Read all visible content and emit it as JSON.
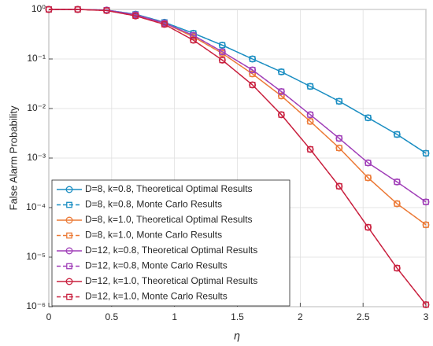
{
  "chart_data": {
    "type": "line",
    "x_label": "η",
    "y_label": "False Alarm Probability",
    "x": [
      0,
      0.23,
      0.46,
      0.69,
      0.92,
      1.15,
      1.38,
      1.62,
      1.85,
      2.08,
      2.31,
      2.54,
      2.77,
      3
    ],
    "series": [
      {
        "name": "D=8, k=0.8, Theoretical Optimal Results",
        "color": "#1b8ec2",
        "marker": "circle",
        "linestyle": "solid",
        "values": [
          1,
          1,
          0.97,
          0.8,
          0.55,
          0.33,
          0.19,
          0.1,
          0.055,
          0.028,
          0.014,
          0.0065,
          0.003,
          0.00125
        ]
      },
      {
        "name": "D=8, k=0.8, Monte Carlo Results",
        "color": "#1b8ec2",
        "marker": "square",
        "linestyle": "dashed",
        "values": [
          1,
          1,
          0.97,
          0.8,
          0.55,
          0.33,
          0.19,
          0.1,
          0.055,
          0.028,
          0.014,
          0.0065,
          0.003,
          0.00125
        ]
      },
      {
        "name": "D=8, k=1.0, Theoretical Optimal Results",
        "color": "#ec7a37",
        "marker": "circle",
        "linestyle": "solid",
        "values": [
          1,
          1,
          0.96,
          0.78,
          0.53,
          0.28,
          0.13,
          0.05,
          0.018,
          0.0055,
          0.0016,
          0.0004,
          0.00012,
          4.5e-05
        ]
      },
      {
        "name": "D=8, k=1.0, Monte Carlo Results",
        "color": "#ec7a37",
        "marker": "square",
        "linestyle": "dashed",
        "values": [
          1,
          1,
          0.96,
          0.78,
          0.53,
          0.28,
          0.13,
          0.05,
          0.018,
          0.0055,
          0.0016,
          0.0004,
          0.00012,
          4.5e-05
        ]
      },
      {
        "name": "D=12, k=0.8, Theoretical Optimal Results",
        "color": "#a03fb8",
        "marker": "circle",
        "linestyle": "solid",
        "values": [
          1,
          1,
          0.97,
          0.78,
          0.53,
          0.3,
          0.14,
          0.06,
          0.022,
          0.0075,
          0.0025,
          0.0008,
          0.00033,
          0.00013
        ]
      },
      {
        "name": "D=12, k=0.8, Monte Carlo Results",
        "color": "#a03fb8",
        "marker": "square",
        "linestyle": "dashed",
        "values": [
          1,
          1,
          0.97,
          0.78,
          0.53,
          0.3,
          0.14,
          0.06,
          0.022,
          0.0075,
          0.0025,
          0.0008,
          0.00033,
          0.00013
        ]
      },
      {
        "name": "D=12, k=1.0, Theoretical Optimal Results",
        "color": "#c9213f",
        "marker": "circle",
        "linestyle": "solid",
        "values": [
          1,
          1,
          0.95,
          0.74,
          0.5,
          0.24,
          0.095,
          0.03,
          0.0075,
          0.0015,
          0.00027,
          4e-05,
          6e-06,
          1.1e-06
        ]
      },
      {
        "name": "D=12, k=1.0, Monte Carlo Results",
        "color": "#c9213f",
        "marker": "square",
        "linestyle": "dashed",
        "values": [
          1,
          1,
          0.95,
          0.74,
          0.5,
          0.24,
          0.095,
          0.03,
          0.0075,
          0.0015,
          0.00027,
          4e-05,
          6e-06,
          1.1e-06
        ]
      }
    ],
    "xlim": [
      0,
      3
    ],
    "xticks": [
      0,
      0.5,
      1,
      1.5,
      2,
      2.5,
      3
    ],
    "ylim": [
      1e-06,
      1
    ],
    "y_scale": "log",
    "yticks": [
      {
        "value": 1e-06,
        "label": "10⁻⁶"
      },
      {
        "value": 1e-05,
        "label": "10⁻⁵"
      },
      {
        "value": 0.0001,
        "label": "10⁻⁴"
      },
      {
        "value": 0.001,
        "label": "10⁻³"
      },
      {
        "value": 0.01,
        "label": "10⁻²"
      },
      {
        "value": 0.1,
        "label": "10⁻¹"
      },
      {
        "value": 1,
        "label": "10⁰"
      }
    ],
    "grid": true,
    "legend": "lower left"
  }
}
